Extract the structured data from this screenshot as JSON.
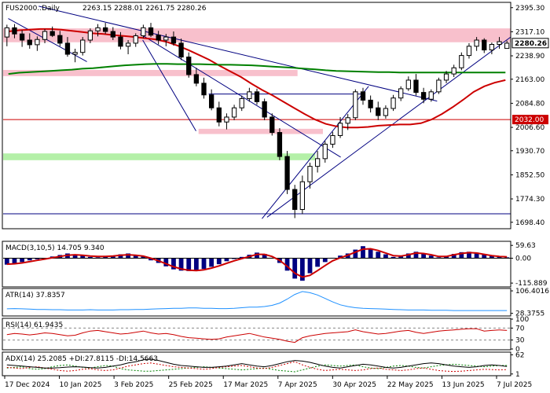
{
  "chart_data": {
    "type": "candlestick",
    "main": {
      "title": "FUS2000..Daily",
      "ohlc_text": "2263.15 2288.01 2261.75 2280.26",
      "ylim": [
        1680,
        2410
      ],
      "y_ticks": [
        {
          "value": 2395.3,
          "label": "2395.30"
        },
        {
          "value": 2317.1,
          "label": "2317.10"
        },
        {
          "value": 2238.9,
          "label": "2238.90"
        },
        {
          "value": 2163.0,
          "label": "2163.00"
        },
        {
          "value": 2084.8,
          "label": "2084.80"
        },
        {
          "value": 2006.6,
          "label": "2006.60"
        },
        {
          "value": 1930.7,
          "label": "1930.70"
        },
        {
          "value": 1852.5,
          "label": "1852.50"
        },
        {
          "value": 1774.3,
          "label": "1774.30"
        },
        {
          "value": 1698.4,
          "label": "1698.40"
        }
      ],
      "current_price": {
        "value": 2280.26,
        "label": "2280.26"
      },
      "level_marker": {
        "value": 2032.0,
        "label": "2032.00",
        "color": "#cc0000"
      },
      "hlines": [
        {
          "value": 2032.0,
          "color": "#cc0000"
        },
        {
          "value": 1726.0,
          "color": "#000080"
        },
        {
          "value": 2115.0,
          "color": "#000080",
          "x_from": 0.405,
          "x_to": 0.705
        }
      ],
      "zones": [
        {
          "low": 2283,
          "high": 2328,
          "color": "#f8c0cc",
          "x_from": 0.0,
          "x_to": 1.0
        },
        {
          "low": 2173,
          "high": 2193,
          "color": "#f8c0cc",
          "x_from": 0.0,
          "x_to": 0.58
        },
        {
          "low": 1985,
          "high": 2002,
          "color": "#f8c0cc",
          "x_from": 0.385,
          "x_to": 0.63
        },
        {
          "low": 1900,
          "high": 1922,
          "color": "#b4f0a8",
          "x_from": 0.0,
          "x_to": 0.615
        }
      ],
      "trendlines": [
        {
          "x1": 0.01,
          "y1": 2360,
          "x2": 0.165,
          "y2": 2220,
          "color": "#000080"
        },
        {
          "x1": 0.07,
          "y1": 2400,
          "x2": 0.855,
          "y2": 2092,
          "color": "#000080"
        },
        {
          "x1": 0.27,
          "y1": 2310,
          "x2": 0.665,
          "y2": 1910,
          "color": "#000080"
        },
        {
          "x1": 0.275,
          "y1": 2290,
          "x2": 0.38,
          "y2": 1995,
          "color": "#000080"
        },
        {
          "x1": 0.51,
          "y1": 1710,
          "x2": 0.72,
          "y2": 2140,
          "color": "#000080"
        },
        {
          "x1": 0.52,
          "y1": 1715,
          "x2": 1.0,
          "y2": 2300,
          "color": "#000080"
        }
      ],
      "series": [
        {
          "name": "",
          "color": "#cc0000",
          "values": [
            2318,
            2322,
            2324,
            2326,
            2326,
            2324,
            2320,
            2316,
            2312,
            2310,
            2306,
            2303,
            2300,
            2296,
            2292,
            2284,
            2272,
            2258,
            2242,
            2226,
            2206,
            2188,
            2170,
            2148,
            2128,
            2110,
            2090,
            2070,
            2050,
            2032,
            2018,
            2010,
            2006,
            2006,
            2008,
            2012,
            2014,
            2016,
            2016,
            2020,
            2032,
            2050,
            2072,
            2096,
            2122,
            2140,
            2152,
            2160
          ]
        },
        {
          "name": "",
          "color": "#008000",
          "values": [
            2180,
            2184,
            2186,
            2188,
            2190,
            2192,
            2194,
            2197,
            2199,
            2202,
            2205,
            2208,
            2210,
            2212,
            2213,
            2213,
            2212,
            2212,
            2212,
            2211,
            2210,
            2210,
            2209,
            2208,
            2206,
            2204,
            2202,
            2200,
            2197,
            2195,
            2192,
            2190,
            2189,
            2188,
            2187,
            2186,
            2186,
            2185,
            2185,
            2185,
            2185,
            2185,
            2185,
            2185,
            2185,
            2185,
            2185,
            2185
          ]
        }
      ]
    },
    "candles": [
      [
        2300,
        2340,
        2270,
        2330
      ],
      [
        2330,
        2342,
        2296,
        2310
      ],
      [
        2310,
        2322,
        2268,
        2290
      ],
      [
        2290,
        2312,
        2262,
        2275
      ],
      [
        2275,
        2302,
        2255,
        2292
      ],
      [
        2292,
        2326,
        2280,
        2318
      ],
      [
        2318,
        2334,
        2300,
        2305
      ],
      [
        2305,
        2320,
        2270,
        2280
      ],
      [
        2280,
        2300,
        2236,
        2244
      ],
      [
        2244,
        2262,
        2218,
        2250
      ],
      [
        2250,
        2300,
        2240,
        2290
      ],
      [
        2290,
        2328,
        2280,
        2320
      ],
      [
        2320,
        2342,
        2302,
        2330
      ],
      [
        2330,
        2346,
        2310,
        2318
      ],
      [
        2318,
        2332,
        2290,
        2300
      ],
      [
        2300,
        2316,
        2260,
        2270
      ],
      [
        2270,
        2290,
        2244,
        2280
      ],
      [
        2280,
        2312,
        2268,
        2304
      ],
      [
        2304,
        2340,
        2296,
        2330
      ],
      [
        2330,
        2346,
        2300,
        2306
      ],
      [
        2306,
        2320,
        2276,
        2290
      ],
      [
        2290,
        2310,
        2270,
        2300
      ],
      [
        2300,
        2318,
        2272,
        2280
      ],
      [
        2280,
        2295,
        2225,
        2235
      ],
      [
        2235,
        2250,
        2168,
        2178
      ],
      [
        2178,
        2200,
        2140,
        2150
      ],
      [
        2150,
        2168,
        2100,
        2112
      ],
      [
        2112,
        2130,
        2062,
        2070
      ],
      [
        2070,
        2090,
        2010,
        2024
      ],
      [
        2024,
        2052,
        2000,
        2040
      ],
      [
        2040,
        2080,
        2030,
        2070
      ],
      [
        2070,
        2110,
        2060,
        2100
      ],
      [
        2100,
        2135,
        2090,
        2122
      ],
      [
        2122,
        2132,
        2080,
        2090
      ],
      [
        2090,
        2100,
        2030,
        2040
      ],
      [
        2040,
        2052,
        1980,
        1990
      ],
      [
        1990,
        2004,
        1900,
        1912
      ],
      [
        1912,
        1930,
        1790,
        1805
      ],
      [
        1805,
        1820,
        1712,
        1740
      ],
      [
        1740,
        1850,
        1725,
        1830
      ],
      [
        1830,
        1892,
        1808,
        1880
      ],
      [
        1880,
        1930,
        1860,
        1905
      ],
      [
        1905,
        1962,
        1892,
        1952
      ],
      [
        1952,
        1992,
        1940,
        1980
      ],
      [
        1980,
        2040,
        1972,
        2020
      ],
      [
        2020,
        2050,
        1998,
        2038
      ],
      [
        2038,
        2130,
        2030,
        2122
      ],
      [
        2122,
        2135,
        2080,
        2095
      ],
      [
        2095,
        2110,
        2055,
        2070
      ],
      [
        2070,
        2090,
        2030,
        2045
      ],
      [
        2045,
        2078,
        2035,
        2068
      ],
      [
        2068,
        2112,
        2060,
        2102
      ],
      [
        2102,
        2140,
        2092,
        2132
      ],
      [
        2132,
        2172,
        2125,
        2160
      ],
      [
        2160,
        2180,
        2110,
        2120
      ],
      [
        2120,
        2135,
        2085,
        2098
      ],
      [
        2098,
        2130,
        2090,
        2122
      ],
      [
        2122,
        2168,
        2115,
        2160
      ],
      [
        2160,
        2190,
        2150,
        2180
      ],
      [
        2180,
        2210,
        2170,
        2200
      ],
      [
        2200,
        2250,
        2192,
        2240
      ],
      [
        2240,
        2280,
        2230,
        2270
      ],
      [
        2270,
        2300,
        2255,
        2290
      ],
      [
        2290,
        2296,
        2248,
        2258
      ],
      [
        2258,
        2282,
        2244,
        2276
      ],
      [
        2276,
        2300,
        2262,
        2285
      ],
      [
        2263,
        2288,
        2262,
        2280
      ]
    ],
    "x_ticks": [
      "17 Dec 2024",
      "10 Jan 2025",
      "3 Feb 2025",
      "25 Feb 2025",
      "17 Mar 2025",
      "7 Apr 2025",
      "30 Apr 2025",
      "22 May 2025",
      "13 Jun 2025",
      "7 Jul 2025"
    ],
    "macd": {
      "title": "MACD(3,10,5) 14.705 9.340",
      "ylim": [
        -130,
        75
      ],
      "y_ticks": [
        {
          "value": 59.63,
          "label": "59.63"
        },
        {
          "value": 0,
          "label": "0.00"
        },
        {
          "value": -115.889,
          "label": "-115.889"
        }
      ],
      "histogram": [
        -30,
        -25,
        -18,
        -10,
        -5,
        0,
        8,
        15,
        22,
        18,
        12,
        6,
        4,
        8,
        12,
        18,
        22,
        14,
        8,
        -10,
        -22,
        -38,
        -52,
        -58,
        -60,
        -58,
        -50,
        -40,
        -28,
        -14,
        -4,
        6,
        16,
        26,
        20,
        2,
        -22,
        -58,
        -95,
        -105,
        -70,
        -40,
        -18,
        2,
        12,
        22,
        40,
        56,
        44,
        30,
        18,
        6,
        10,
        22,
        30,
        22,
        12,
        4,
        8,
        20,
        28,
        30,
        26,
        18,
        10,
        6,
        4
      ],
      "signal": [
        -28,
        -26,
        -22,
        -16,
        -10,
        -4,
        2,
        8,
        14,
        16,
        14,
        10,
        8,
        8,
        10,
        14,
        16,
        14,
        10,
        0,
        -12,
        -26,
        -40,
        -50,
        -56,
        -58,
        -54,
        -46,
        -36,
        -24,
        -12,
        -2,
        8,
        18,
        18,
        8,
        -10,
        -38,
        -70,
        -88,
        -80,
        -58,
        -34,
        -12,
        2,
        14,
        28,
        42,
        44,
        36,
        24,
        12,
        10,
        16,
        24,
        22,
        16,
        8,
        8,
        16,
        22,
        26,
        24,
        18,
        12,
        8,
        6
      ],
      "hist_color": "#000080",
      "signal_color": "#cc0000"
    },
    "atr": {
      "title": "ATR(14) 37.8357",
      "ylim": [
        22,
        112
      ],
      "y_ticks": [
        {
          "value": 106.4016,
          "label": "106.4016"
        },
        {
          "value": 28.3755,
          "label": "28.3755"
        }
      ],
      "values": [
        44,
        45,
        44,
        43,
        42,
        42,
        41,
        41,
        40,
        40,
        40,
        41,
        40,
        40,
        40,
        41,
        41,
        42,
        42,
        43,
        44,
        45,
        46,
        46,
        47,
        47,
        46,
        46,
        45,
        45,
        46,
        48,
        50,
        50,
        52,
        56,
        64,
        78,
        94,
        104,
        100,
        92,
        80,
        68,
        58,
        52,
        48,
        46,
        45,
        44,
        43,
        42,
        41,
        40,
        40,
        40,
        39,
        39,
        39,
        38,
        38,
        38,
        38,
        38,
        38,
        38,
        38
      ],
      "color": "#1e90ff"
    },
    "rsi": {
      "title": "RSI(14) 61.9435",
      "ylim": [
        0,
        100
      ],
      "y_ticks": [
        {
          "value": 100,
          "label": "100"
        },
        {
          "value": 70,
          "label": "70"
        },
        {
          "value": 30,
          "label": "30"
        },
        {
          "value": 0,
          "label": "0"
        }
      ],
      "levels": [
        70,
        30
      ],
      "values": [
        48,
        52,
        50,
        47,
        50,
        54,
        52,
        48,
        44,
        46,
        54,
        60,
        62,
        58,
        54,
        50,
        52,
        56,
        60,
        54,
        50,
        52,
        48,
        42,
        38,
        36,
        34,
        32,
        34,
        40,
        44,
        48,
        52,
        46,
        40,
        36,
        32,
        26,
        22,
        38,
        44,
        48,
        52,
        54,
        56,
        58,
        64,
        58,
        54,
        50,
        52,
        56,
        60,
        62,
        56,
        52,
        56,
        60,
        62,
        64,
        66,
        68,
        68,
        60,
        62,
        64,
        62
      ],
      "color": "#cc0000"
    },
    "adx": {
      "title": "ADX(14) 25.2085 +DI:27.8115 -DI:14.5663",
      "ylim": [
        -2,
        68
      ],
      "y_ticks": [
        {
          "value": 62,
          "label": "62"
        },
        {
          "value": 1,
          "label": "1"
        }
      ],
      "adx": [
        30,
        28,
        26,
        24,
        22,
        20,
        20,
        21,
        23,
        24,
        23,
        21,
        20,
        22,
        26,
        30,
        36,
        40,
        46,
        48,
        44,
        38,
        32,
        28,
        26,
        24,
        22,
        22,
        24,
        26,
        30,
        34,
        30,
        26,
        24,
        28,
        34,
        40,
        44,
        42,
        38,
        32,
        26,
        22,
        20,
        24,
        28,
        32,
        30,
        26,
        22,
        20,
        22,
        26,
        30,
        34,
        36,
        34,
        30,
        26,
        24,
        22,
        24,
        28,
        30,
        28,
        25
      ],
      "plus_di": [
        20,
        22,
        24,
        18,
        16,
        18,
        24,
        28,
        30,
        26,
        22,
        20,
        24,
        28,
        26,
        18,
        14,
        12,
        10,
        10,
        12,
        14,
        16,
        18,
        20,
        22,
        24,
        22,
        20,
        18,
        16,
        14,
        16,
        18,
        20,
        16,
        12,
        10,
        8,
        14,
        20,
        26,
        30,
        28,
        26,
        28,
        30,
        24,
        20,
        18,
        22,
        26,
        28,
        26,
        22,
        20,
        24,
        28,
        30,
        32,
        30,
        28,
        26,
        24,
        26,
        28,
        28
      ],
      "minus_di": [
        22,
        20,
        18,
        22,
        24,
        20,
        16,
        12,
        10,
        12,
        16,
        18,
        14,
        12,
        14,
        20,
        26,
        30,
        34,
        36,
        32,
        28,
        24,
        22,
        20,
        18,
        16,
        18,
        22,
        24,
        26,
        28,
        24,
        20,
        18,
        22,
        28,
        34,
        40,
        30,
        22,
        16,
        12,
        14,
        16,
        14,
        12,
        14,
        18,
        20,
        16,
        14,
        12,
        14,
        18,
        20,
        16,
        12,
        10,
        9,
        10,
        12,
        14,
        16,
        15,
        14,
        15
      ],
      "adx_color": "#000000",
      "plus_color": "#008000",
      "minus_color": "#cc0000"
    }
  }
}
